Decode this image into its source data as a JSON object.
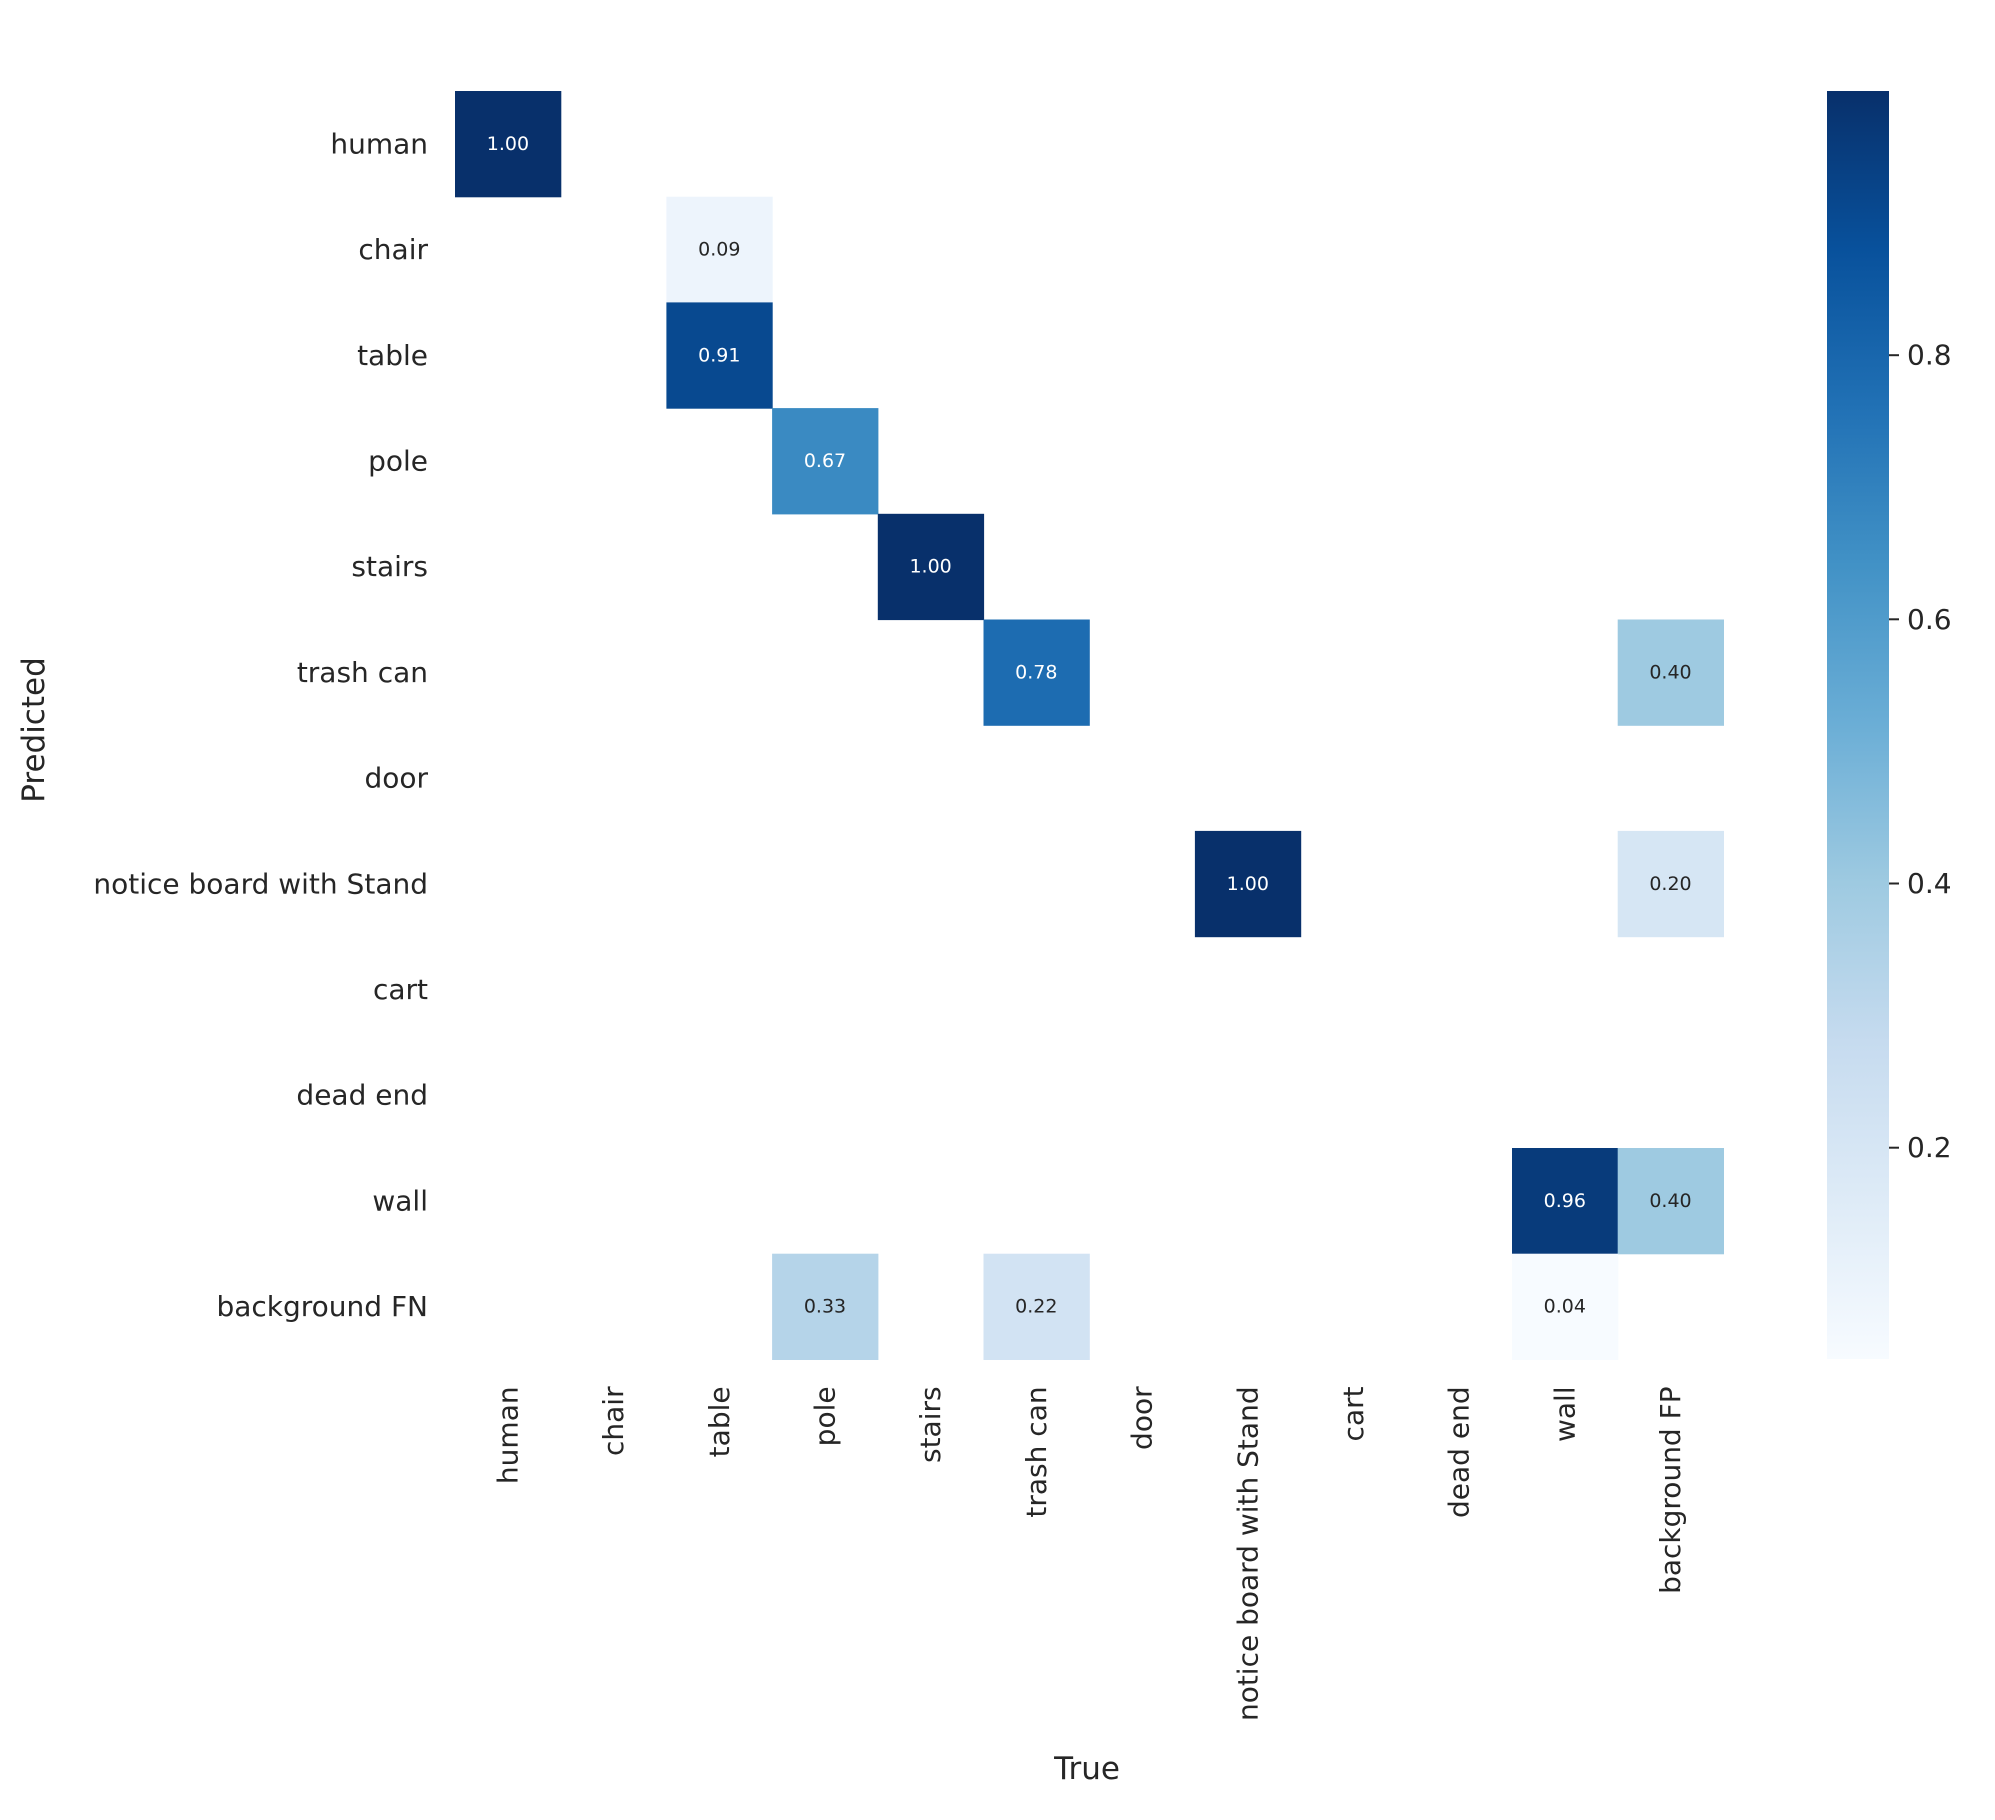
{
  "chart_data": {
    "type": "heatmap",
    "title": "",
    "xlabel": "True",
    "ylabel": "Predicted",
    "x_categories": [
      "human",
      "chair",
      "table",
      "pole",
      "stairs",
      "trash can",
      "door",
      "notice board with Stand",
      "cart",
      "dead end",
      "wall",
      "background FP"
    ],
    "y_categories": [
      "human",
      "chair",
      "table",
      "pole",
      "stairs",
      "trash can",
      "door",
      "notice board with Stand",
      "cart",
      "dead end",
      "wall",
      "background FN"
    ],
    "values": [
      [
        1.0,
        null,
        null,
        null,
        null,
        null,
        null,
        null,
        null,
        null,
        null,
        null
      ],
      [
        null,
        null,
        0.09,
        null,
        null,
        null,
        null,
        null,
        null,
        null,
        null,
        null
      ],
      [
        null,
        null,
        0.91,
        null,
        null,
        null,
        null,
        null,
        null,
        null,
        null,
        null
      ],
      [
        null,
        null,
        null,
        0.67,
        null,
        null,
        null,
        null,
        null,
        null,
        null,
        null
      ],
      [
        null,
        null,
        null,
        null,
        1.0,
        null,
        null,
        null,
        null,
        null,
        null,
        null
      ],
      [
        null,
        null,
        null,
        null,
        null,
        0.78,
        null,
        null,
        null,
        null,
        null,
        0.4
      ],
      [
        null,
        null,
        null,
        null,
        null,
        null,
        null,
        null,
        null,
        null,
        null,
        null
      ],
      [
        null,
        null,
        null,
        null,
        null,
        null,
        null,
        1.0,
        null,
        null,
        null,
        0.2
      ],
      [
        null,
        null,
        null,
        null,
        null,
        null,
        null,
        null,
        null,
        null,
        null,
        null
      ],
      [
        null,
        null,
        null,
        null,
        null,
        null,
        null,
        null,
        null,
        null,
        null,
        null
      ],
      [
        null,
        null,
        null,
        null,
        null,
        null,
        null,
        null,
        null,
        null,
        0.96,
        0.4
      ],
      [
        null,
        null,
        null,
        0.33,
        null,
        0.22,
        null,
        null,
        null,
        null,
        0.04,
        null
      ]
    ],
    "value_format": "0.00",
    "colormap": "Blues",
    "color_range": [
      0.04,
      1.0
    ],
    "colorbar_ticks": [
      0.2,
      0.4,
      0.6,
      0.8
    ],
    "colorbar_tick_labels": [
      "0.2",
      "0.4",
      "0.6",
      "0.8"
    ],
    "blues_stops": [
      "#f7fbff",
      "#deebf7",
      "#c6dbef",
      "#9ecae1",
      "#6baed6",
      "#4292c6",
      "#2171b5",
      "#08519c",
      "#08306b"
    ]
  }
}
